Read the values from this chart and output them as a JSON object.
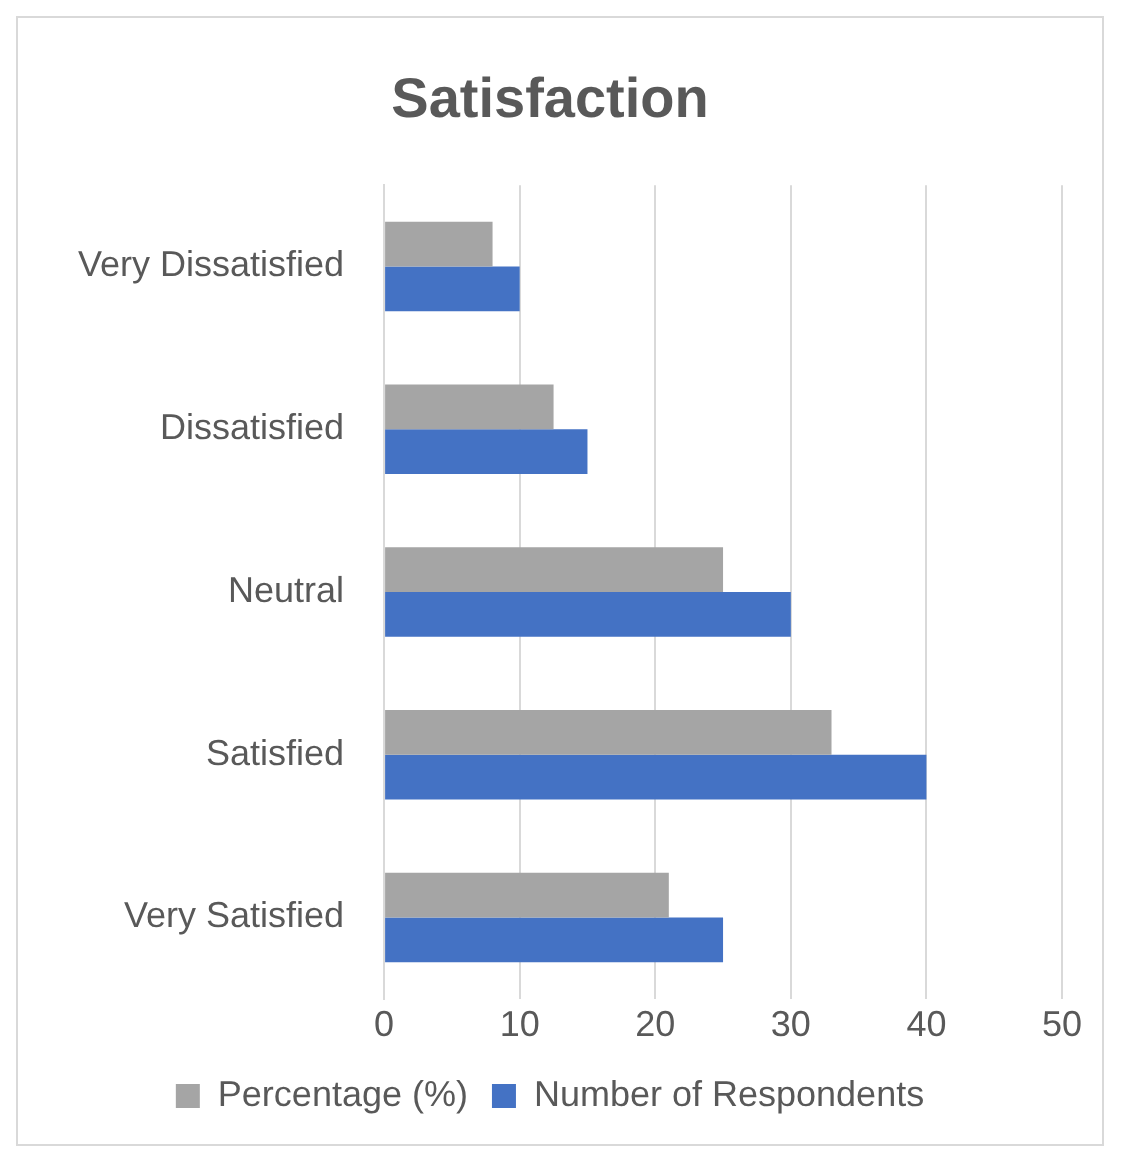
{
  "chart_data": {
    "type": "bar",
    "title": "Satisfaction",
    "orientation": "horizontal",
    "categories": [
      "Very Dissatisfied",
      "Dissatisfied",
      "Neutral",
      "Satisfied",
      "Very Satisfied"
    ],
    "series": [
      {
        "name": "Percentage (%)",
        "color": "#a5a5a5",
        "values": [
          8,
          12.5,
          25,
          33,
          21
        ]
      },
      {
        "name": "Number of Respondents",
        "color": "#4472c4",
        "values": [
          10,
          15,
          30,
          40,
          25
        ]
      }
    ],
    "xlim": [
      0,
      50
    ],
    "xticks": [
      0,
      10,
      20,
      30,
      40,
      50
    ],
    "grid": "x",
    "legend": "bottom"
  }
}
